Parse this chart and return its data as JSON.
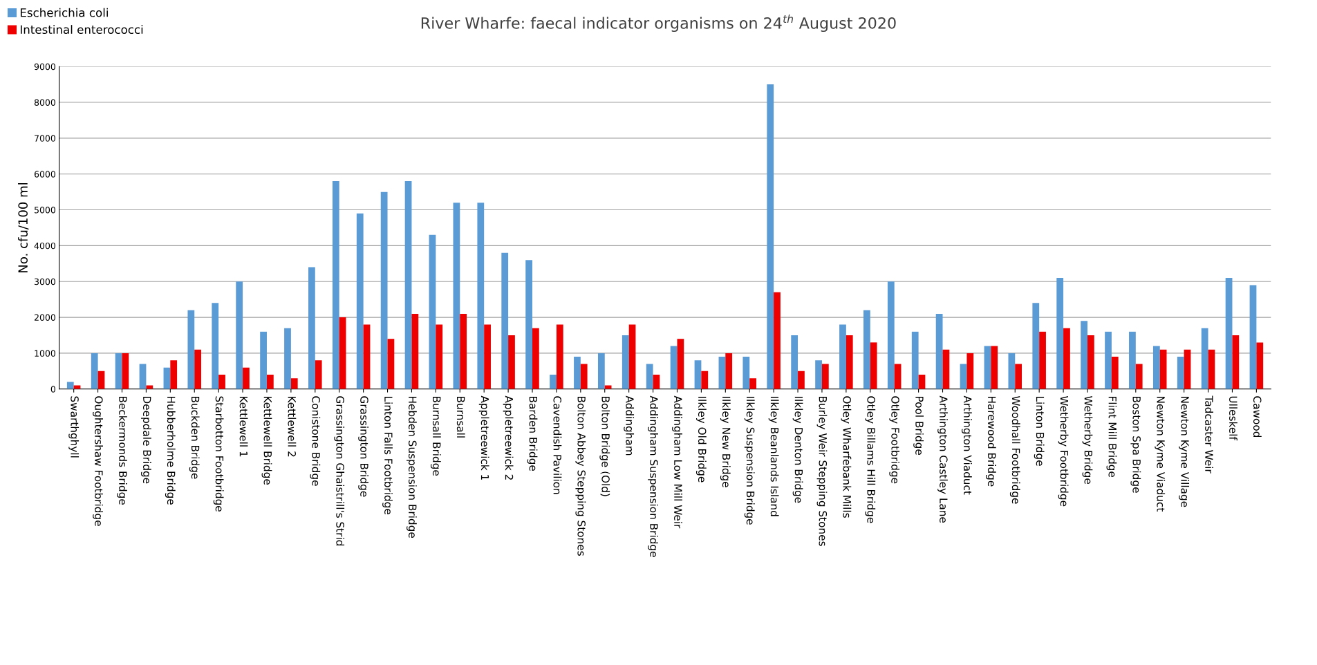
{
  "chart_data": {
    "type": "bar",
    "title": "River Wharfe: faecal indicator organisms on 24$^{th}$ August 2020",
    "ylabel": "No. cfu/100 ml",
    "categories": [
      "Swarthghyll",
      "Oughtershaw Footbridge",
      "Beckermonds Bridge",
      "Deepdale Bridge",
      "Hubberholme Bridge",
      "Buckden Bridge",
      "Starbotton Footbridge",
      "Kettlewell 1",
      "Kettlewell Bridge",
      "Kettlewell 2",
      "Conistone Bridge",
      "Grassington Ghaistrill's Strid",
      "Grassington Bridge",
      "Linton Falls Footbridge",
      "Hebden Suspension Bridge",
      "Burnsall Bridge",
      "Burnsall",
      "Appletreewick 1",
      "Appletreewick 2",
      "Barden Bridge",
      "Cavendish Pavilion",
      "Bolton Abbey Stepping Stones",
      "Bolton Bridge (Old)",
      "Addingham",
      "Addingham Suspension Bridge",
      "Addingham Low Mill Weir",
      "Ilkley Old Bridge",
      "Ilkley New Bridge",
      "Ilkley Suspension Bridge",
      "Ilkley Beanlands Island",
      "Ilkley Denton Bridge",
      "Burley Weir Stepping Stones",
      "Otley Wharfebank Mills",
      "Otley Billams Hill Bridge",
      "Otley Footbridge",
      "Pool Bridge",
      "Arthington Castley Lane",
      "Arthington Viaduct",
      "Harewood Bridge",
      "Woodhall Footbridge",
      "Linton Bridge",
      "Wetherby Footbridge",
      "Wetherby Bridge",
      "Flint Mill Bridge",
      "Boston Spa Bridge",
      "Newton Kyme Viaduct",
      "Newton Kyme Village",
      "Tadcaster Weir",
      "Ulleskelf",
      "Cawood"
    ],
    "series": [
      {
        "name": "Escherichia coli",
        "color": "#5b9bd5",
        "values": [
          200,
          1000,
          1000,
          700,
          600,
          2200,
          2400,
          3000,
          1600,
          1700,
          3400,
          5800,
          4900,
          5500,
          5800,
          4300,
          5200,
          5200,
          3800,
          3600,
          400,
          900,
          1000,
          1500,
          700,
          1200,
          800,
          900,
          900,
          8500,
          1500,
          800,
          1800,
          2200,
          3000,
          1600,
          2100,
          700,
          1200,
          1000,
          2400,
          3100,
          1900,
          1600,
          1600,
          1200,
          900,
          1700,
          3100,
          2900
        ]
      },
      {
        "name": "Intestinal enterococci",
        "color": "#ee0000",
        "values": [
          100,
          500,
          1000,
          100,
          800,
          1100,
          400,
          600,
          400,
          300,
          800,
          2000,
          1800,
          1400,
          2100,
          1800,
          2100,
          1800,
          1500,
          1700,
          1800,
          700,
          100,
          1800,
          400,
          1400,
          500,
          1000,
          300,
          2700,
          500,
          700,
          1500,
          1300,
          700,
          400,
          1100,
          1000,
          1200,
          700,
          1600,
          1700,
          1500,
          900,
          700,
          1100,
          1100,
          1100,
          1500,
          1300
        ]
      }
    ],
    "ylim": [
      0,
      9000
    ],
    "yticks": [
      0,
      1000,
      2000,
      3000,
      4000,
      5000,
      6000,
      7000,
      8000,
      9000
    ],
    "grid": "y",
    "legend": "top left"
  }
}
